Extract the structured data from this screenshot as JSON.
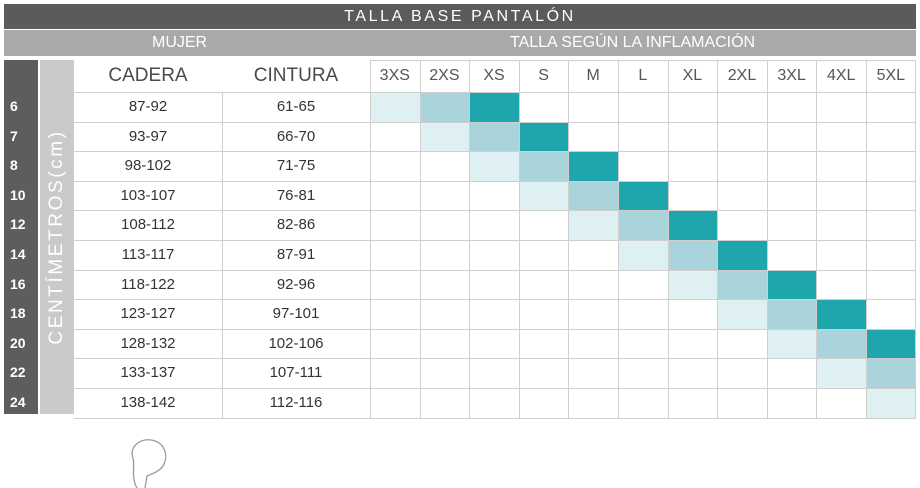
{
  "title": "TALLA BASE PANTALÓN",
  "group_left": "MUJER",
  "group_right": "TALLA SEGÚN LA INFLAMACIÓN",
  "side_label": "CENTÍMETROS(cm)",
  "headers": {
    "hip": "CADERA",
    "waist": "CINTURA"
  },
  "sizes": [
    "3XS",
    "2XS",
    "XS",
    "S",
    "M",
    "L",
    "XL",
    "2XL",
    "3XL",
    "4XL",
    "5XL"
  ],
  "rows": [
    {
      "num": "6",
      "hip": "87-92",
      "waist": "61-65"
    },
    {
      "num": "7",
      "hip": "93-97",
      "waist": "66-70"
    },
    {
      "num": "8",
      "hip": "98-102",
      "waist": "71-75"
    },
    {
      "num": "10",
      "hip": "103-107",
      "waist": "76-81"
    },
    {
      "num": "12",
      "hip": "108-112",
      "waist": "82-86"
    },
    {
      "num": "14",
      "hip": "113-117",
      "waist": "87-91"
    },
    {
      "num": "16",
      "hip": "118-122",
      "waist": "92-96"
    },
    {
      "num": "18",
      "hip": "123-127",
      "waist": "97-101"
    },
    {
      "num": "20",
      "hip": "128-132",
      "waist": "102-106"
    },
    {
      "num": "22",
      "hip": "133-137",
      "waist": "107-111"
    },
    {
      "num": "24",
      "hip": "138-142",
      "waist": "112-116"
    }
  ],
  "colors": {
    "dark": "#1fa6ad",
    "mid": "#a9d4dc",
    "light": "#dff0f2"
  }
}
